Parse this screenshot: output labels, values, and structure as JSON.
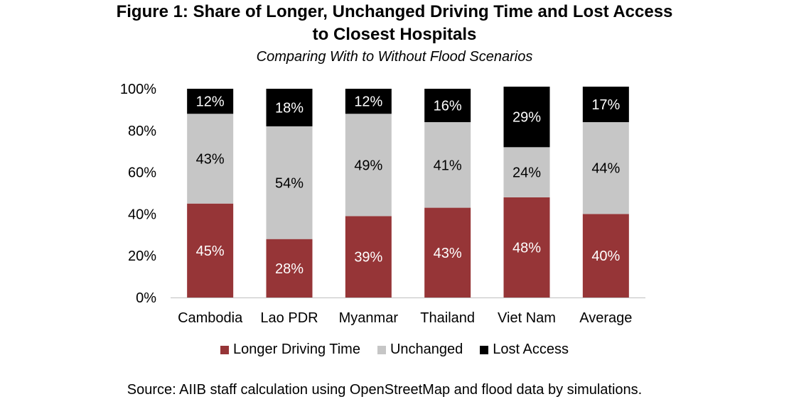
{
  "header": {
    "title_line1": "Figure 1: Share of Longer, Unchanged Driving Time and Lost Access",
    "title_line2": "to Closest Hospitals",
    "subtitle": "Comparing With to Without Flood Scenarios"
  },
  "footer": {
    "source": "Source: AIIB staff calculation using OpenStreetMap and flood data by simulations."
  },
  "chart_data": {
    "type": "bar",
    "stacked": true,
    "title": "Figure 1: Share of Longer, Unchanged Driving Time and Lost Access to Closest Hospitals",
    "subtitle": "Comparing With to Without Flood Scenarios",
    "categories": [
      "Cambodia",
      "Lao PDR",
      "Myanmar",
      "Thailand",
      "Viet Nam",
      "Average"
    ],
    "series": [
      {
        "name": "Longer Driving Time",
        "color": "#963537",
        "label_color": "#ffffff",
        "values": [
          45,
          28,
          39,
          43,
          48,
          40
        ],
        "labels": [
          "45%",
          "28%",
          "39%",
          "43%",
          "48%",
          "40%"
        ]
      },
      {
        "name": "Unchanged",
        "color": "#c6c6c6",
        "label_color": "#000000",
        "values": [
          43,
          54,
          49,
          41,
          24,
          44
        ],
        "labels": [
          "43%",
          "54%",
          "49%",
          "41%",
          "24%",
          "44%"
        ]
      },
      {
        "name": "Lost Access",
        "color": "#000000",
        "label_color": "#ffffff",
        "values": [
          12,
          18,
          12,
          16,
          29,
          17
        ],
        "labels": [
          "12%",
          "18%",
          "12%",
          "16%",
          "29%",
          "17%"
        ]
      }
    ],
    "ylim": [
      0,
      100
    ],
    "yticks": [
      "0%",
      "20%",
      "40%",
      "60%",
      "80%",
      "100%"
    ],
    "ytick_values": [
      0,
      20,
      40,
      60,
      80,
      100
    ],
    "grid": false,
    "legend_position": "bottom"
  }
}
